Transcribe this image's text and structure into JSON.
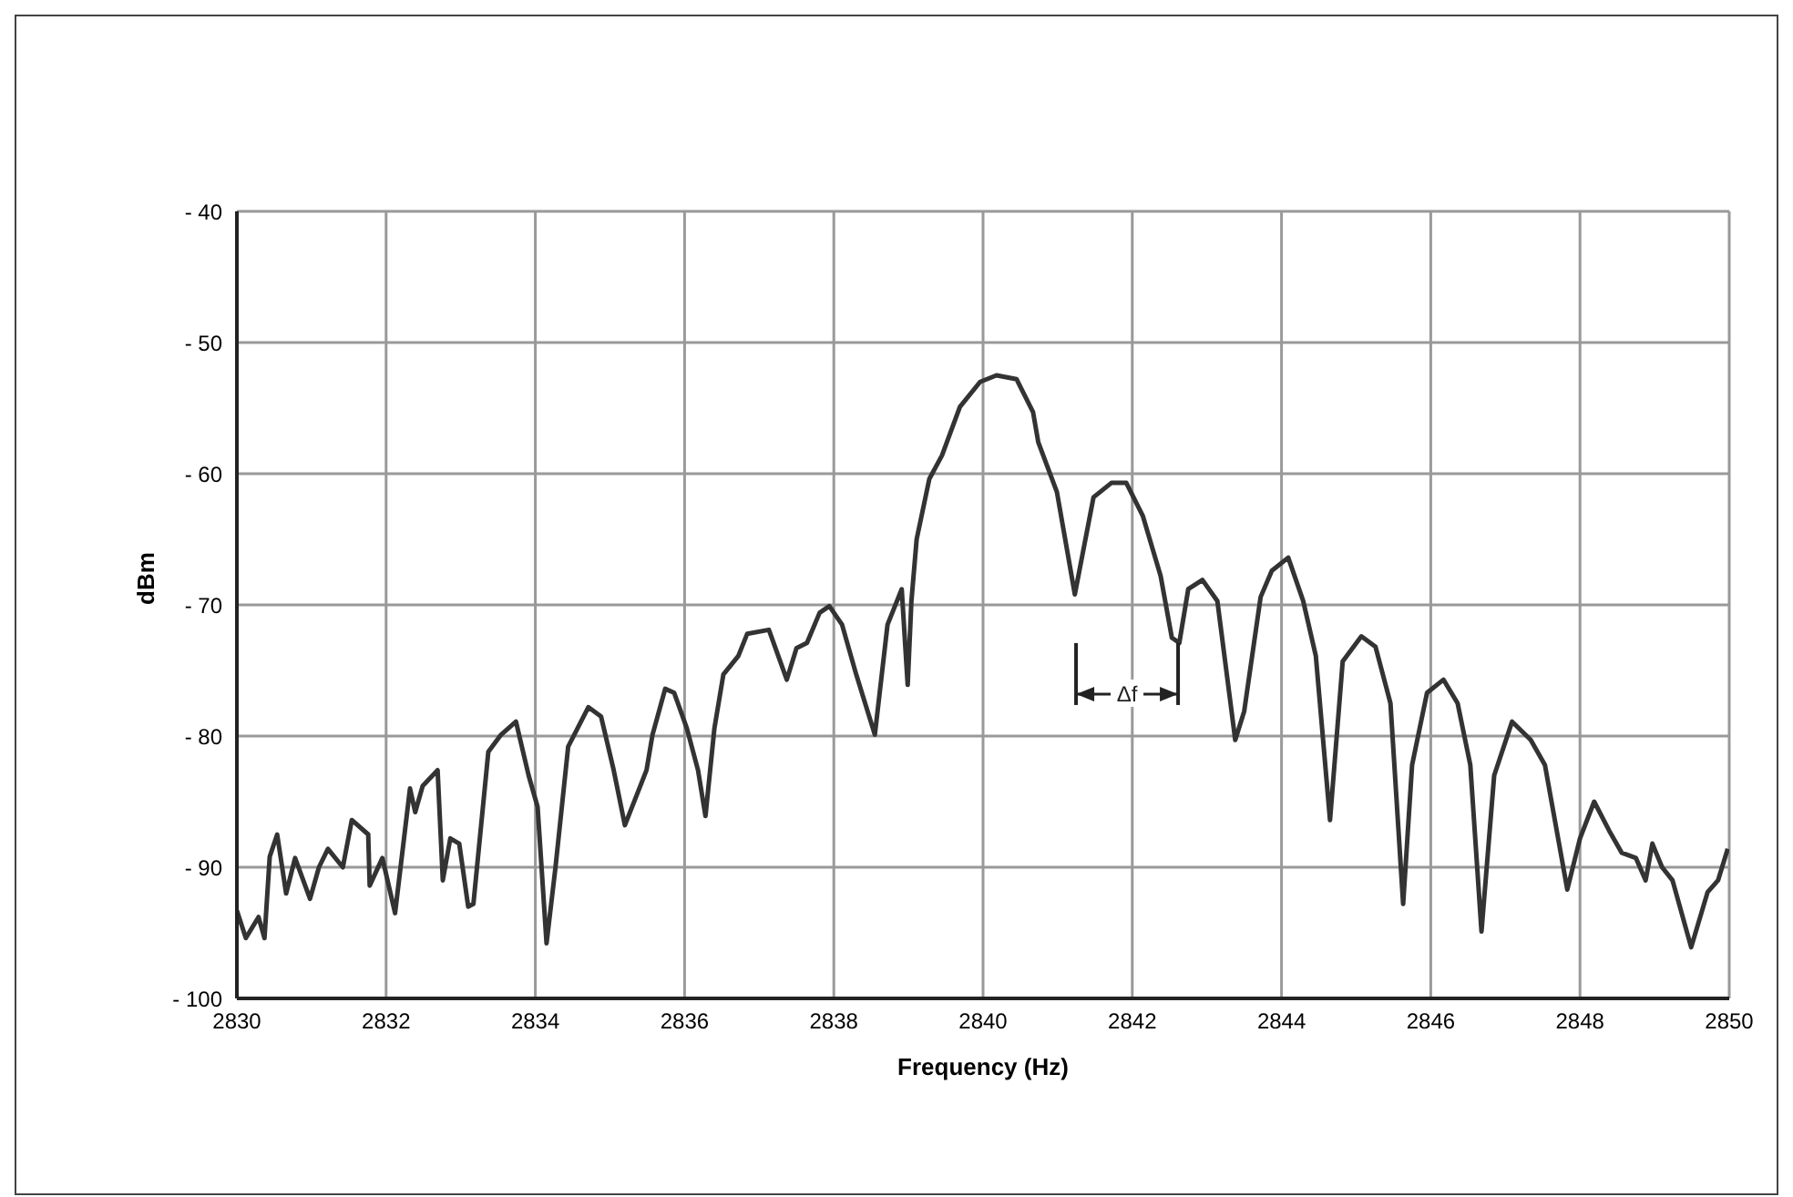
{
  "chart_data": {
    "type": "line",
    "xlabel": "Frequency (Hz)",
    "ylabel": "dBm",
    "xlim": [
      2830,
      2850
    ],
    "xticks": [
      2830,
      2832,
      2834,
      2836,
      2838,
      2840,
      2842,
      2844,
      2846,
      2848,
      2850
    ],
    "ylim": [
      -100,
      -40
    ],
    "yticks": [
      -100,
      -90,
      -80,
      -70,
      -60,
      -50,
      -40
    ],
    "grid": true,
    "legend": false,
    "marker": "none",
    "line_style": "solid",
    "annotations": [
      {
        "text": "Δf",
        "x": 2841.93,
        "y": -76.8
      }
    ],
    "series": [
      {
        "color": "#333333",
        "x": [
          2830.0,
          2830.12,
          2830.29,
          2830.37,
          2830.44,
          2830.54,
          2830.66,
          2830.78,
          2830.98,
          2831.1,
          2831.22,
          2831.42,
          2831.54,
          2831.76,
          2831.78,
          2831.95,
          2832.12,
          2832.32,
          2832.39,
          2832.49,
          2832.69,
          2832.76,
          2832.86,
          2832.98,
          2833.1,
          2833.17,
          2833.37,
          2833.54,
          2833.74,
          2833.91,
          2834.03,
          2834.15,
          2834.27,
          2834.44,
          2834.71,
          2834.88,
          2835.05,
          2835.2,
          2835.49,
          2835.57,
          2835.74,
          2835.86,
          2836.03,
          2836.18,
          2836.28,
          2836.4,
          2836.52,
          2836.72,
          2836.84,
          2837.13,
          2837.37,
          2837.5,
          2837.64,
          2837.81,
          2837.94,
          2838.11,
          2838.3,
          2838.55,
          2838.72,
          2838.91,
          2838.99,
          2839.04,
          2839.11,
          2839.28,
          2839.45,
          2839.69,
          2839.96,
          2840.18,
          2840.45,
          2840.67,
          2840.74,
          2840.99,
          2841.23,
          2841.48,
          2841.72,
          2841.92,
          2842.14,
          2842.38,
          2842.53,
          2842.63,
          2842.75,
          2842.94,
          2843.14,
          2843.38,
          2843.5,
          2843.72,
          2843.87,
          2844.09,
          2844.29,
          2844.46,
          2844.65,
          2844.82,
          2845.07,
          2845.26,
          2845.46,
          2845.63,
          2845.75,
          2845.95,
          2846.17,
          2846.36,
          2846.53,
          2846.68,
          2846.85,
          2847.09,
          2847.34,
          2847.53,
          2847.83,
          2848.0,
          2848.19,
          2848.39,
          2848.56,
          2848.75,
          2848.88,
          2848.97,
          2849.1,
          2849.24,
          2849.49,
          2849.71,
          2849.85,
          2849.98
        ],
        "values": [
          -93.3,
          -95.4,
          -93.8,
          -95.4,
          -89.2,
          -87.5,
          -92,
          -89.3,
          -92.4,
          -90,
          -88.6,
          -90,
          -86.4,
          -87.5,
          -91.4,
          -89.3,
          -93.5,
          -84,
          -85.8,
          -83.8,
          -82.6,
          -91,
          -87.8,
          -88.2,
          -93,
          -92.8,
          -81.2,
          -79.9,
          -78.9,
          -83,
          -85.4,
          -95.8,
          -90,
          -80.8,
          -77.8,
          -78.5,
          -82.6,
          -86.8,
          -82.6,
          -79.9,
          -76.4,
          -76.7,
          -79.4,
          -82.6,
          -86.1,
          -79.4,
          -75.3,
          -73.9,
          -72.2,
          -71.9,
          -75.7,
          -73.3,
          -72.9,
          -70.6,
          -70.1,
          -71.5,
          -75.3,
          -79.9,
          -71.5,
          -68.8,
          -76.1,
          -69.7,
          -65,
          -60.4,
          -58.6,
          -54.9,
          -53,
          -52.5,
          -52.8,
          -55.3,
          -57.6,
          -61.4,
          -69.2,
          -61.8,
          -60.7,
          -60.7,
          -63.2,
          -67.8,
          -72.5,
          -72.9,
          -68.8,
          -68.1,
          -69.7,
          -80.3,
          -78.1,
          -69.4,
          -67.4,
          -66.4,
          -69.7,
          -73.9,
          -86.4,
          -74.3,
          -72.4,
          -73.2,
          -77.5,
          -92.8,
          -82.2,
          -76.7,
          -75.7,
          -77.5,
          -82.2,
          -94.9,
          -83,
          -78.9,
          -80.3,
          -82.2,
          -91.7,
          -87.8,
          -85,
          -87.2,
          -88.9,
          -89.3,
          -91,
          -88.2,
          -90,
          -91,
          -96.1,
          -91.9,
          -91,
          -88.6
        ]
      }
    ]
  }
}
